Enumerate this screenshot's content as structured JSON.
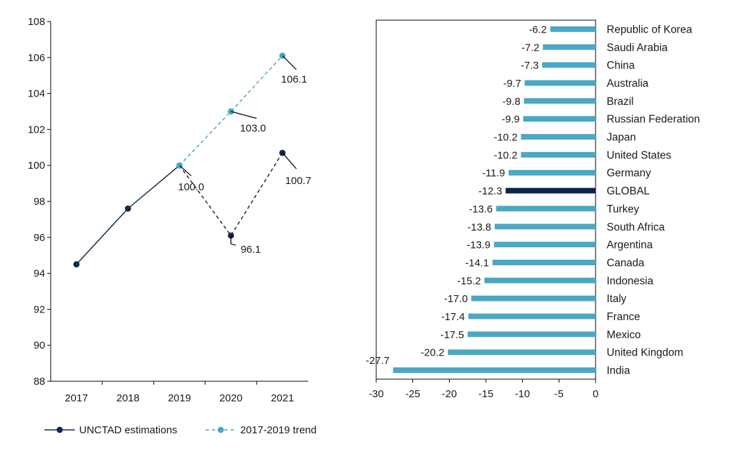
{
  "chart_data": [
    {
      "type": "line",
      "title": "",
      "xlabel": "",
      "ylabel": "",
      "categories": [
        "2017",
        "2018",
        "2019",
        "2020",
        "2021"
      ],
      "ylim": [
        88,
        108
      ],
      "yticks": [
        88,
        90,
        92,
        94,
        96,
        98,
        100,
        102,
        104,
        106,
        108
      ],
      "grid": false,
      "legend": "bottom",
      "colors": {
        "estimations": "#13294b",
        "trend": "#4aa8c4"
      },
      "series": [
        {
          "name": "UNCTAD estimations",
          "style": "solid-then-dashed",
          "values": [
            94.5,
            97.6,
            100.0,
            96.1,
            100.7
          ],
          "labels": [
            null,
            null,
            null,
            "96.1",
            "100.7"
          ]
        },
        {
          "name": "2017-2019 trend",
          "style": "dashed",
          "values": [
            null,
            null,
            100.0,
            103.0,
            106.1
          ],
          "labels": [
            null,
            null,
            "100.0",
            "103.0",
            "106.1"
          ]
        }
      ]
    },
    {
      "type": "bar",
      "orientation": "horizontal",
      "title": "",
      "xlabel": "",
      "ylabel": "",
      "xlim": [
        -30,
        0
      ],
      "xticks": [
        -30,
        -25,
        -20,
        -15,
        -10,
        -5,
        0
      ],
      "grid": false,
      "colors": {
        "default": "#4aa8c4",
        "highlight": "#0d2347"
      },
      "categories": [
        "Republic of Korea",
        "Saudi Arabia",
        "China",
        "Australia",
        "Brazil",
        "Russian Federation",
        "Japan",
        "United States",
        "Germany",
        "GLOBAL",
        "Turkey",
        "South Africa",
        "Argentina",
        "Canada",
        "Indonesia",
        "Italy",
        "France",
        "Mexico",
        "United Kingdom",
        "India"
      ],
      "values": [
        -6.2,
        -7.2,
        -7.3,
        -9.7,
        -9.8,
        -9.9,
        -10.2,
        -10.2,
        -11.9,
        -12.3,
        -13.6,
        -13.8,
        -13.9,
        -14.1,
        -15.2,
        -17.0,
        -17.4,
        -17.5,
        -20.2,
        -27.7
      ],
      "labels": [
        "-6.2",
        "-7.2",
        "-7.3",
        "-9.7",
        "-9.8",
        "-9.9",
        "-10.2",
        "-10.2",
        "-11.9",
        "-12.3",
        "-13.6",
        "-13.8",
        "-13.9",
        "-14.1",
        "-15.2",
        "-17.0",
        "-17.4",
        "-17.5",
        "-20.2",
        "-27.7"
      ],
      "highlight": "GLOBAL"
    }
  ]
}
